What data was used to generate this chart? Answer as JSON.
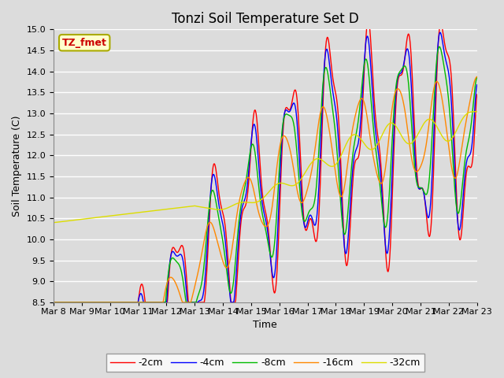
{
  "title": "Tonzi Soil Temperature Set D",
  "xlabel": "Time",
  "ylabel": "Soil Temperature (C)",
  "ylim": [
    8.5,
    15.0
  ],
  "yticks": [
    8.5,
    9.0,
    9.5,
    10.0,
    10.5,
    11.0,
    11.5,
    12.0,
    12.5,
    13.0,
    13.5,
    14.0,
    14.5,
    15.0
  ],
  "x_tick_labels": [
    "Mar 8",
    "Mar 9",
    "Mar 10",
    "Mar 11",
    "Mar 12",
    "Mar 13",
    "Mar 14",
    "Mar 15",
    "Mar 16",
    "Mar 17",
    "Mar 18",
    "Mar 19",
    "Mar 20",
    "Mar 21",
    "Mar 22",
    "Mar 23"
  ],
  "series_labels": [
    "-2cm",
    "-4cm",
    "-8cm",
    "-16cm",
    "-32cm"
  ],
  "series_colors": [
    "#ff0000",
    "#0000ff",
    "#00bb00",
    "#ff8800",
    "#dddd00"
  ],
  "background_color": "#dcdcdc",
  "title_fontsize": 12,
  "axis_fontsize": 9,
  "tick_fontsize": 8,
  "legend_box_color": "#ffffcc",
  "legend_box_edge": "#aaaa00",
  "tzfmet_color": "#cc0000"
}
